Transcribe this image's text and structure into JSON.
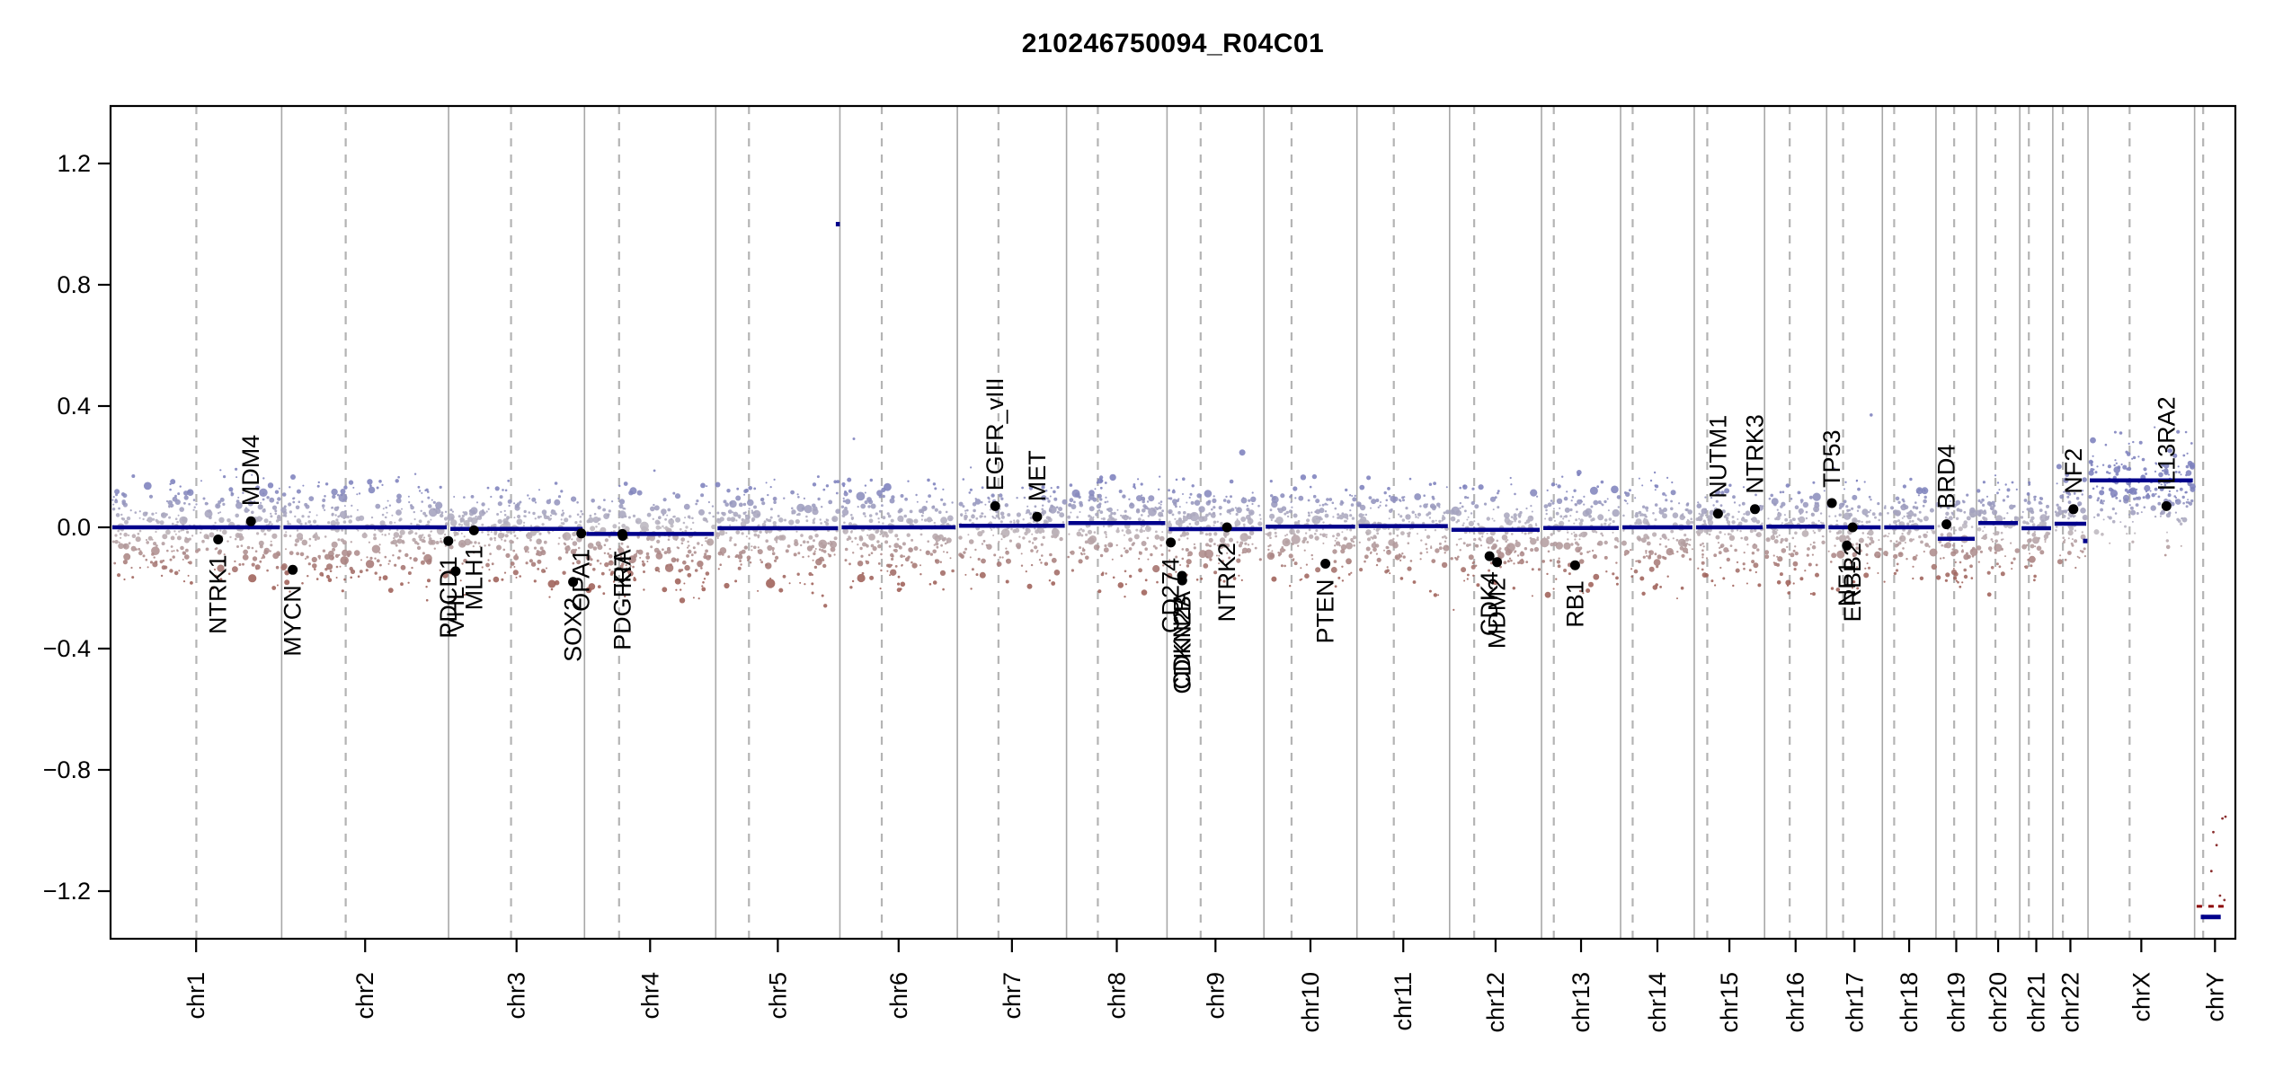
{
  "chart_data": {
    "type": "scatter",
    "subtype": "genome-wide-copy-number-log-ratio",
    "title": "210246750094_R04C01",
    "xlabel": "",
    "ylabel": "",
    "ylim": [
      -1.36,
      1.39
    ],
    "yticks": [
      -1.2,
      -0.8,
      -0.4,
      0.0,
      0.4,
      0.8,
      1.2
    ],
    "grid": "solid chromosome boundaries, dashed centromeres",
    "legend": "none",
    "colors": {
      "gain_point": "#7d81bd",
      "neutral_point": "#bdb8bf",
      "loss_point": "#9e6058",
      "segment_line": "#00008b",
      "outlier_dash": "#8b0000",
      "boundary_line": "#a8a8a8",
      "centromere_line": "#b4b4b4",
      "gene_marker": "#000000",
      "axis": "#000000"
    },
    "chromosomes": [
      {
        "label": "chr1",
        "length_mb": 249.3,
        "centromere_mb": 125.0,
        "segment_value": 0.0
      },
      {
        "label": "chr2",
        "length_mb": 243.2,
        "centromere_mb": 93.3,
        "segment_value": 0.0
      },
      {
        "label": "chr3",
        "length_mb": 198.0,
        "centromere_mb": 91.0,
        "segment_value": -0.005
      },
      {
        "label": "chr4",
        "length_mb": 191.2,
        "centromere_mb": 50.4,
        "segment_value": -0.022
      },
      {
        "label": "chr5",
        "length_mb": 180.9,
        "centromere_mb": 48.4,
        "segment_value": -0.003
      },
      {
        "label": "chr6",
        "length_mb": 171.1,
        "centromere_mb": 61.0,
        "segment_value": 0.0
      },
      {
        "label": "chr7",
        "length_mb": 159.1,
        "centromere_mb": 59.9,
        "segment_value": 0.005
      },
      {
        "label": "chr8",
        "length_mb": 146.4,
        "centromere_mb": 45.6,
        "segment_value": 0.014
      },
      {
        "label": "chr9",
        "length_mb": 141.2,
        "centromere_mb": 49.0,
        "segment_value": -0.006
      },
      {
        "label": "chr10",
        "length_mb": 135.5,
        "centromere_mb": 40.2,
        "segment_value": 0.002
      },
      {
        "label": "chr11",
        "length_mb": 135.0,
        "centromere_mb": 53.7,
        "segment_value": 0.004
      },
      {
        "label": "chr12",
        "length_mb": 133.9,
        "centromere_mb": 35.8,
        "segment_value": -0.008
      },
      {
        "label": "chr13",
        "length_mb": 115.2,
        "centromere_mb": 17.9,
        "segment_value": -0.002
      },
      {
        "label": "chr14",
        "length_mb": 107.3,
        "centromere_mb": 17.6,
        "segment_value": 0.0
      },
      {
        "label": "chr15",
        "length_mb": 102.5,
        "centromere_mb": 19.0,
        "segment_value": 0.0
      },
      {
        "label": "chr16",
        "length_mb": 90.4,
        "centromere_mb": 36.6,
        "segment_value": 0.002
      },
      {
        "label": "chr17",
        "length_mb": 81.2,
        "centromere_mb": 24.0,
        "segment_value": 0.0
      },
      {
        "label": "chr18",
        "length_mb": 78.1,
        "centromere_mb": 17.2,
        "segment_value": 0.0
      },
      {
        "label": "chr19",
        "length_mb": 59.1,
        "centromere_mb": 26.5,
        "segment_value": -0.038
      },
      {
        "label": "chr20",
        "length_mb": 63.0,
        "centromere_mb": 27.5,
        "segment_value": 0.014
      },
      {
        "label": "chr21",
        "length_mb": 48.1,
        "centromere_mb": 13.2,
        "segment_value": -0.003
      },
      {
        "label": "chr22",
        "length_mb": 51.3,
        "centromere_mb": 14.7,
        "segment_value": 0.012
      },
      {
        "label": "chrX",
        "length_mb": 155.3,
        "centromere_mb": 60.6,
        "segment_value": 0.155,
        "cloud_mean": 0.14
      },
      {
        "label": "chrY",
        "length_mb": 59.4,
        "centromere_mb": 12.5,
        "segment_value": null,
        "sparse": true
      }
    ],
    "genes": [
      {
        "name": "NTRK1",
        "chr": "chr1",
        "pos_mb": 156.8,
        "value": -0.04,
        "label_side": "below"
      },
      {
        "name": "MDM4",
        "chr": "chr1",
        "pos_mb": 204.5,
        "value": 0.02,
        "label_side": "above"
      },
      {
        "name": "MYCN",
        "chr": "chr2",
        "pos_mb": 16.1,
        "value": -0.14,
        "label_side": "below"
      },
      {
        "name": "PDCD1",
        "chr": "chr2",
        "pos_mb": 242.8,
        "value": -0.045,
        "label_side": "below"
      },
      {
        "name": "VHL",
        "chr": "chr3",
        "pos_mb": 10.2,
        "value": -0.145,
        "label_side": "below"
      },
      {
        "name": "MLH1",
        "chr": "chr3",
        "pos_mb": 37.0,
        "value": -0.01,
        "label_side": "below"
      },
      {
        "name": "SOX2",
        "chr": "chr3",
        "pos_mb": 181.4,
        "value": -0.18,
        "label_side": "below"
      },
      {
        "name": "OPA1",
        "chr": "chr3",
        "pos_mb": 193.3,
        "value": -0.02,
        "label_side": "below"
      },
      {
        "name": "PDGFRA",
        "chr": "chr4",
        "pos_mb": 55.1,
        "value": -0.022,
        "label_side": "below"
      },
      {
        "name": "KIT",
        "chr": "chr4",
        "pos_mb": 55.6,
        "value": -0.028,
        "label_side": "below"
      },
      {
        "name": "EGFR_vIII",
        "chr": "chr7",
        "pos_mb": 55.1,
        "value": 0.07,
        "label_side": "above"
      },
      {
        "name": "MET",
        "chr": "chr7",
        "pos_mb": 116.3,
        "value": 0.035,
        "label_side": "above"
      },
      {
        "name": "CD274",
        "chr": "chr9",
        "pos_mb": 5.5,
        "value": -0.05,
        "label_side": "below"
      },
      {
        "name": "CDKN2A",
        "chr": "chr9",
        "pos_mb": 21.9,
        "value": -0.16,
        "label_side": "below"
      },
      {
        "name": "CDKN2B",
        "chr": "chr9",
        "pos_mb": 22.1,
        "value": -0.175,
        "label_side": "below"
      },
      {
        "name": "NTRK2",
        "chr": "chr9",
        "pos_mb": 87.3,
        "value": 0.0,
        "label_side": "below"
      },
      {
        "name": "PTEN",
        "chr": "chr10",
        "pos_mb": 89.6,
        "value": -0.12,
        "label_side": "below"
      },
      {
        "name": "CDK4",
        "chr": "chr12",
        "pos_mb": 58.1,
        "value": -0.095,
        "label_side": "below"
      },
      {
        "name": "MDM2",
        "chr": "chr12",
        "pos_mb": 69.2,
        "value": -0.115,
        "label_side": "below"
      },
      {
        "name": "RB1",
        "chr": "chr13",
        "pos_mb": 48.9,
        "value": -0.125,
        "label_side": "below"
      },
      {
        "name": "NUTM1",
        "chr": "chr15",
        "pos_mb": 34.6,
        "value": 0.045,
        "label_side": "above"
      },
      {
        "name": "NTRK3",
        "chr": "chr15",
        "pos_mb": 88.4,
        "value": 0.06,
        "label_side": "above"
      },
      {
        "name": "TP53",
        "chr": "chr17",
        "pos_mb": 7.6,
        "value": 0.08,
        "label_side": "above"
      },
      {
        "name": "NF1",
        "chr": "chr17",
        "pos_mb": 29.5,
        "value": -0.06,
        "label_side": "below"
      },
      {
        "name": "ERBB2",
        "chr": "chr17",
        "pos_mb": 37.9,
        "value": 0.0,
        "label_side": "below"
      },
      {
        "name": "BRD4",
        "chr": "chr19",
        "pos_mb": 15.3,
        "value": 0.01,
        "label_side": "above"
      },
      {
        "name": "NF2",
        "chr": "chr22",
        "pos_mb": 30.0,
        "value": 0.06,
        "label_side": "above"
      },
      {
        "name": "IL13RA2",
        "chr": "chrX",
        "pos_mb": 114.2,
        "value": 0.07,
        "label_side": "above"
      }
    ],
    "extra_segments": [
      {
        "name": "chr5-terminal-focal-gain",
        "chr": "chr5",
        "start_mb": 175.0,
        "end_mb": 180.9,
        "value": 1.0
      },
      {
        "name": "chr22-terminal-loss",
        "chr": "chr22",
        "start_mb": 44.0,
        "end_mb": 50.5,
        "value": -0.045
      },
      {
        "name": "chrY-deep-loss-segment",
        "chr": "chrY",
        "start_mb": 9.0,
        "end_mb": 38.0,
        "value": -1.285
      }
    ],
    "outlier_dash_rows": [
      {
        "name": "chrY-deep-loss-probes",
        "chr": "chrY",
        "value": -1.25,
        "ranges_mb": [
          [
            3.0,
            17.0
          ],
          [
            20.0,
            44.0
          ]
        ]
      }
    ],
    "point_cloud": {
      "points_per_mb": 1.4,
      "sd": 0.105,
      "negative_tail_factor": 1.3,
      "outlier_rate": 0.015,
      "chrY_sparse_points": 7,
      "chrY_value_range": [
        -1.24,
        -0.92
      ]
    }
  }
}
